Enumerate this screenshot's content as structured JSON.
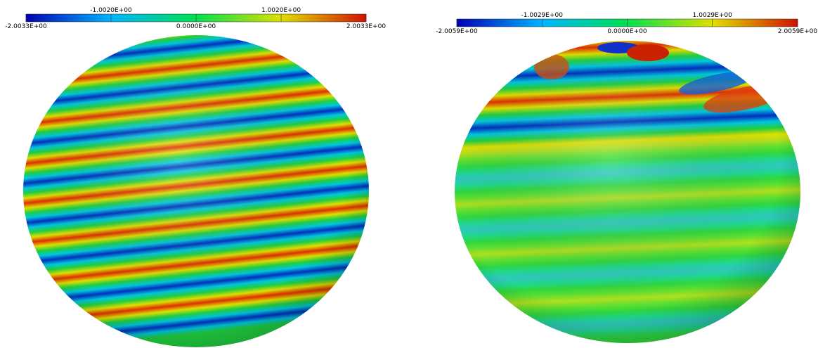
{
  "panels": [
    {
      "colorbar": {
        "range": [
          -2.0033,
          2.0033
        ],
        "ticks": [
          {
            "value": -2.0033,
            "label": "-2.0033E+00"
          },
          {
            "value": -1.002,
            "label": "-1.0020E+00"
          },
          {
            "value": 0,
            "label": "0.0000E+00"
          },
          {
            "value": 1.002,
            "label": "1.0020E+00"
          },
          {
            "value": 2.0033,
            "label": "2.0033E+00"
          }
        ]
      }
    },
    {
      "colorbar": {
        "range": [
          -2.0059,
          2.0059
        ],
        "ticks": [
          {
            "value": -2.0059,
            "label": "-2.0059E+00"
          },
          {
            "value": -1.0029,
            "label": "-1.0029E+00"
          },
          {
            "value": 0,
            "label": "0.0000E+00"
          },
          {
            "value": 1.0029,
            "label": "1.0029E+00"
          },
          {
            "value": 2.0059,
            "label": "2.0059E+00"
          }
        ]
      }
    }
  ]
}
